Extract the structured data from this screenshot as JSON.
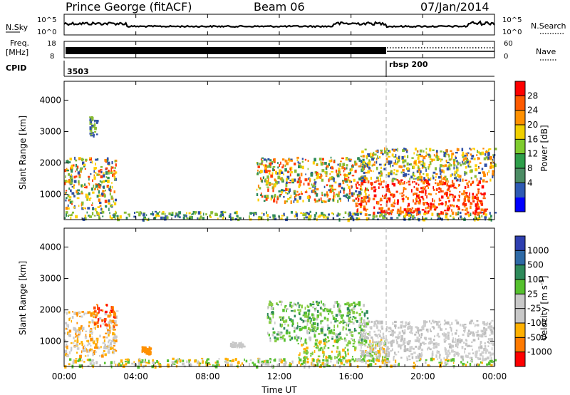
{
  "header": {
    "station": "Prince George (fitACF)",
    "beam": "Beam 06",
    "date": "07/Jan/2014"
  },
  "strip_panels": {
    "nsky_label": "N.Sky",
    "nsky_ticks": [
      "10^5",
      "10^0"
    ],
    "nsearch_label": "N.Search",
    "nsearch_ticks": [
      "10^5",
      "10^0"
    ],
    "freq_label_1": "Freq.",
    "freq_label_2": "[MHz]",
    "freq_ticks": [
      "18",
      "8"
    ],
    "nave_label": "Nave",
    "nave_ticks": [
      "60",
      "0"
    ],
    "cpid_label": "CPID",
    "cpid_values": [
      "3503",
      "rbsp 200"
    ]
  },
  "chart_data": [
    {
      "type": "heatmap",
      "name": "power",
      "ylabel": "Slant Range [km]",
      "yticks": [
        "1000",
        "2000",
        "3000",
        "4000"
      ],
      "ylim": [
        200,
        4600
      ],
      "colorbar_label": "Power [dB]",
      "colorbar_ticks": [
        "28",
        "24",
        "20",
        "16",
        "12",
        "8",
        "4"
      ],
      "colorbar_colors": [
        "#0000ff",
        "#2e5ab4",
        "#4b8c64",
        "#2e9e4a",
        "#7fcc2e",
        "#f0d000",
        "#ff9000",
        "#ff5a00",
        "#ff0000"
      ],
      "regions": [
        {
          "t0": 0.0,
          "t1": 2.9,
          "r0": 550,
          "r1": 2200,
          "mix": [
            "#ff3b00",
            "#ff8800",
            "#88bb33",
            "#2e8a5a",
            "#2e4fa6",
            "#ffd000"
          ]
        },
        {
          "t0": 10.7,
          "t1": 16.9,
          "r0": 800,
          "r1": 2200,
          "mix": [
            "#ff8800",
            "#ffd000",
            "#2e8a5a",
            "#88bb33",
            "#2e4fa6",
            "#ff3b00"
          ]
        },
        {
          "t0": 16.2,
          "t1": 23.5,
          "r0": 400,
          "r1": 1500,
          "mix": [
            "#ff0000",
            "#ff2a00",
            "#ff5a00",
            "#ff8800"
          ]
        },
        {
          "t0": 16.5,
          "t1": 24.0,
          "r0": 1500,
          "r1": 2500,
          "mix": [
            "#2e4fa6",
            "#88bb33",
            "#ff8800",
            "#ffd000"
          ]
        },
        {
          "t0": 1.4,
          "t1": 1.8,
          "r0": 2900,
          "r1": 3500,
          "mix": [
            "#2e4fa6",
            "#88bb33"
          ]
        },
        {
          "t0": 0.0,
          "t1": 24.0,
          "r0": 230,
          "r1": 480,
          "mix": [
            "#2e4fa6",
            "#88bb33",
            "#ffd000",
            "#2e8a5a"
          ]
        }
      ]
    },
    {
      "type": "heatmap",
      "name": "velocity",
      "ylabel": "Slant Range [km]",
      "yticks": [
        "1000",
        "2000",
        "3000",
        "4000"
      ],
      "ylim": [
        200,
        4600
      ],
      "xlabel": "Time UT",
      "xticks": [
        "00:00",
        "04:00",
        "08:00",
        "12:00",
        "16:00",
        "20:00",
        "00:00"
      ],
      "xlim": [
        0,
        24
      ],
      "colorbar_label": "Velocity [m s^-1]",
      "colorbar_ticks": [
        "1000",
        "500",
        "100",
        "25",
        "-25",
        "-100",
        "-500",
        "-1000"
      ],
      "colorbar_colors": [
        "#2e3fb0",
        "#2e6aa6",
        "#2e8a5a",
        "#55c02e",
        "#c8c8c8",
        "#c8c8c8",
        "#ffb000",
        "#ff7a00",
        "#ff0000"
      ],
      "regions": [
        {
          "t0": 0.0,
          "t1": 2.9,
          "r0": 550,
          "r1": 2000,
          "mix": [
            "#c8c8c8",
            "#d0d0d0",
            "#ff9000",
            "#ffb000"
          ]
        },
        {
          "t0": 1.6,
          "t1": 2.9,
          "r0": 1500,
          "r1": 2200,
          "mix": [
            "#ff4a00",
            "#ff0000",
            "#ff9000"
          ]
        },
        {
          "t0": 11.3,
          "t1": 16.9,
          "r0": 1050,
          "r1": 2300,
          "mix": [
            "#2e8a5a",
            "#55c02e",
            "#c8c8c8",
            "#88cc44"
          ]
        },
        {
          "t0": 13.0,
          "t1": 18.0,
          "r0": 400,
          "r1": 1100,
          "mix": [
            "#55c02e",
            "#88cc44",
            "#ffb000"
          ]
        },
        {
          "t0": 16.4,
          "t1": 23.9,
          "r0": 450,
          "r1": 1700,
          "mix": [
            "#c8c8c8",
            "#d0d0d0",
            "#bcbcbc"
          ]
        },
        {
          "t0": 9.2,
          "t1": 10.0,
          "r0": 850,
          "r1": 1000,
          "mix": [
            "#c8c8c8"
          ]
        },
        {
          "t0": 4.3,
          "t1": 4.8,
          "r0": 650,
          "r1": 850,
          "mix": [
            "#ff9000"
          ]
        },
        {
          "t0": 0.0,
          "t1": 24.0,
          "r0": 230,
          "r1": 480,
          "mix": [
            "#ffb000",
            "#55c02e",
            "#c8c8c8"
          ]
        }
      ]
    }
  ]
}
